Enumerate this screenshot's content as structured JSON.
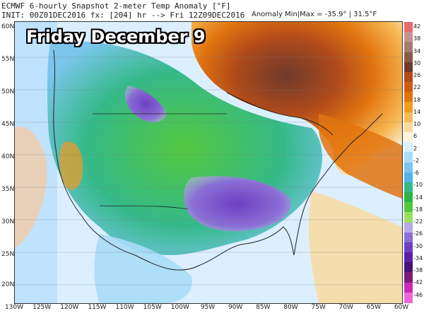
{
  "header": {
    "line1": "ECMWF 6-hourly Snapshot 2-meter Temp Anomaly [°F]",
    "line2": "INIT: 00Z01DEC2016 fx: [204] hr --> Fri 12Z09DEC2016",
    "anomaly_range": "Anomaly Min|Max = -35.9° | 31.5°F"
  },
  "overlay_title": "Friday December 9",
  "latitude_labels": [
    "60N",
    "55N",
    "50N",
    "45N",
    "40N",
    "35N",
    "30N",
    "25N",
    "20N"
  ],
  "longitude_labels": [
    "130W",
    "125W",
    "120W",
    "115W",
    "110W",
    "105W",
    "100W",
    "95W",
    "90W",
    "85W",
    "80W",
    "75W",
    "70W",
    "65W",
    "60W"
  ],
  "colorbar": {
    "labels": [
      "42",
      "38",
      "34",
      "30",
      "26",
      "22",
      "18",
      "14",
      "10",
      "6",
      "2",
      "-2",
      "-6",
      "-10",
      "-14",
      "-18",
      "-22",
      "-26",
      "-30",
      "-34",
      "-38",
      "-42",
      "-46"
    ],
    "colors": [
      "#e96a6a",
      "#c98f8f",
      "#a77b6d",
      "#8b5b48",
      "#6e3a2c",
      "#b04a1a",
      "#d05b14",
      "#e2740f",
      "#f39a1f",
      "#f7b955",
      "#fbd99a",
      "#fff4dc",
      "#d8f0ff",
      "#a8dcf7",
      "#7cc6ee",
      "#53b3e6",
      "#35b989",
      "#29b446",
      "#53c83f",
      "#9ae05d",
      "#b8a9e8",
      "#8b6fd6",
      "#6e3fc2",
      "#5a1fa5",
      "#4b117a",
      "#7a1b7d",
      "#c92cb6",
      "#ef66d9"
    ]
  }
}
